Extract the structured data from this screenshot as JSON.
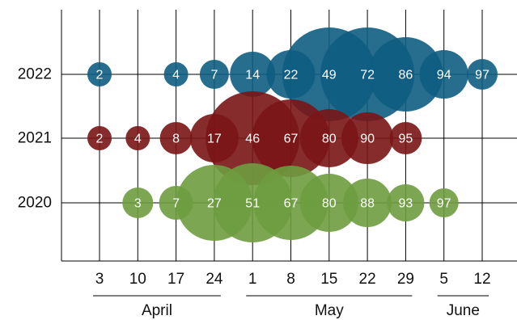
{
  "chart_data": {
    "type": "bubble",
    "title": "",
    "xlabel": "",
    "ylabel": "",
    "grid": true,
    "x_tick_labels": [
      "3",
      "10",
      "17",
      "24",
      "1",
      "8",
      "15",
      "22",
      "29",
      "5",
      "12"
    ],
    "months": [
      {
        "name": "April",
        "span": [
          0,
          3
        ]
      },
      {
        "name": "May",
        "span": [
          4,
          8
        ]
      },
      {
        "name": "June",
        "span": [
          9,
          10
        ]
      }
    ],
    "series": [
      {
        "name": "2022",
        "color": "#0e5d82",
        "x": [
          0,
          2,
          3,
          4,
          5,
          6,
          7,
          8,
          9,
          10
        ],
        "labels": [
          2,
          4,
          7,
          14,
          22,
          49,
          72,
          86,
          94,
          97
        ],
        "sizes": [
          15,
          15,
          18,
          28,
          30,
          58,
          58,
          46,
          30,
          19
        ]
      },
      {
        "name": "2021",
        "color": "#7a1516",
        "x": [
          0,
          1,
          2,
          3,
          4,
          5,
          6,
          7,
          8
        ],
        "labels": [
          2,
          4,
          8,
          17,
          46,
          67,
          80,
          90,
          95
        ],
        "sizes": [
          15,
          15,
          20,
          30,
          58,
          48,
          36,
          32,
          20
        ]
      },
      {
        "name": "2020",
        "color": "#6e9c3f",
        "x": [
          1,
          2,
          3,
          4,
          5,
          6,
          7,
          8,
          9
        ],
        "labels": [
          3,
          7,
          27,
          51,
          67,
          80,
          88,
          93,
          97
        ],
        "sizes": [
          19,
          21,
          47,
          49,
          46,
          36,
          30,
          23,
          18
        ]
      }
    ]
  }
}
